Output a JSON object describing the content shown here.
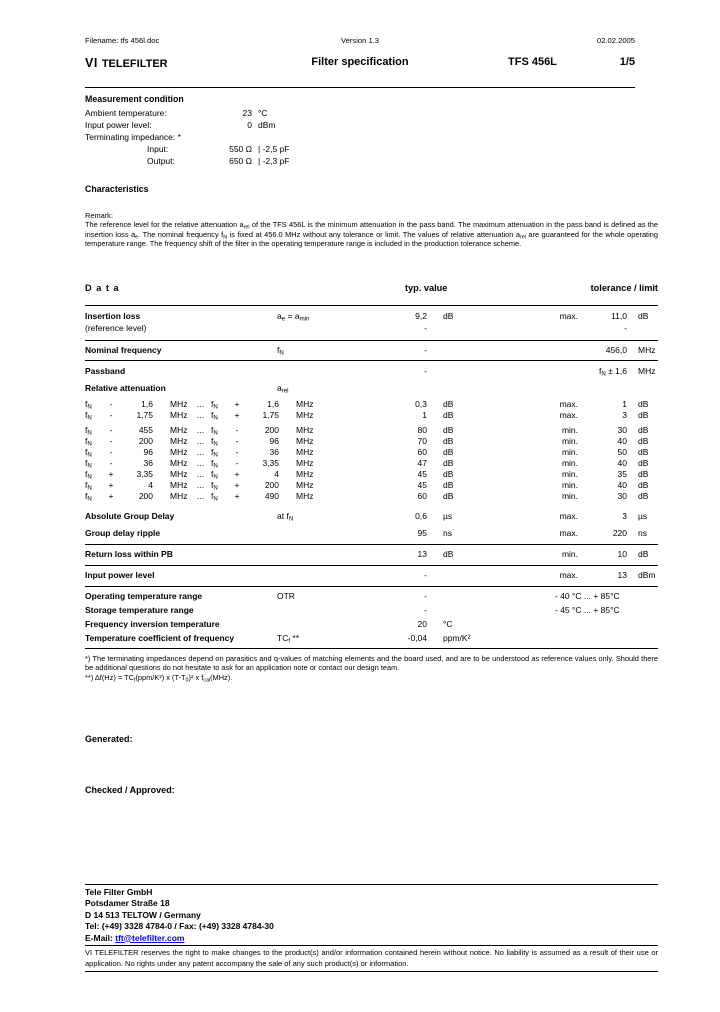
{
  "colors": {
    "text": "#000000",
    "background": "#ffffff",
    "link": "#0000cc"
  },
  "header": {
    "filename": "Filename: tfs 456l.doc",
    "version": "Version 1.3",
    "date": "02.02.2005",
    "logo_vi": "VI",
    "logo_name": "TELEFILTER",
    "doc_title": "Filter specification",
    "part_number": "TFS 456L",
    "page_number": "1/5"
  },
  "measurement": {
    "title": "Measurement condition",
    "rows": [
      {
        "label": "Ambient temperature:",
        "value": "23",
        "unit": "°C"
      },
      {
        "label": "Input power level:",
        "value": "0",
        "unit": "dBm"
      },
      {
        "label": "Terminating impedance: *",
        "value": "",
        "unit": ""
      },
      {
        "label": "Input:",
        "value": "550 Ω",
        "unit": "| -2,5 pF"
      },
      {
        "label": "Output:",
        "value": "650 Ω",
        "unit": "| -2,3 pF"
      }
    ]
  },
  "characteristics": {
    "title": "Characteristics",
    "remark_label": "Remark:",
    "remark_parts": [
      {
        "t": "The reference level for the relative attenuation a"
      },
      {
        "s": "rel"
      },
      {
        "t": " of the TFS 456L is the minimum attenuation in the pass band. The maximum attenuation in the pass band is defined as the insertion loss a"
      },
      {
        "s": "e"
      },
      {
        "t": ". The nominal frequency f"
      },
      {
        "s": "N"
      },
      {
        "t": " is fixed at 456.0 MHz without any tolerance or limit. The values of relative attenuation a"
      },
      {
        "s": "rel"
      },
      {
        "t": " are guaranteed for the whole operating temperature range. The frequency shift of the filter in the operating temperature range is included in the production tolerance scheme."
      }
    ]
  },
  "data_table": {
    "header": {
      "data": "D a t a",
      "typ": "typ. value",
      "tol": "tolerance / limit"
    },
    "insertion": {
      "name": "Insertion loss",
      "name2": "(reference level)",
      "sym_parts": [
        {
          "t": "a"
        },
        {
          "s": "e"
        },
        {
          "t": " = a"
        },
        {
          "s": "min"
        }
      ],
      "typ": "9,2",
      "typ_unit": "dB",
      "typ2": "-",
      "lim": "max.",
      "tol": "11,0",
      "tol_unit": "dB",
      "tol2": "-"
    },
    "nominal": {
      "name": "Nominal frequency",
      "sym_parts": [
        {
          "t": "f"
        },
        {
          "s": "N"
        }
      ],
      "typ": "-",
      "tol": "456,0",
      "tol_unit": "MHz"
    },
    "passband": {
      "name": "Passband",
      "typ": "-",
      "tol_parts": [
        {
          "t": "f"
        },
        {
          "s": "N"
        },
        {
          "t": " ± 1,6"
        }
      ],
      "tol_unit": "MHz"
    },
    "attenuation": {
      "name": "Relative attenuation",
      "sym_parts": [
        {
          "t": "a"
        },
        {
          "s": "rel"
        }
      ],
      "fsym": "f",
      "fsub": "N",
      "mhz": "MHz",
      "dots": "...",
      "unit": "dB",
      "rows": [
        {
          "s1": "-",
          "o1": "1,6",
          "s2": "+",
          "o2": "1,6",
          "typ": "0,3",
          "lim": "max.",
          "tol": "1"
        },
        {
          "s1": "-",
          "o1": "1,75",
          "s2": "+",
          "o2": "1,75",
          "typ": "1",
          "lim": "max.",
          "tol": "3"
        },
        {
          "s1": "-",
          "o1": "455",
          "s2": "-",
          "o2": "200",
          "typ": "80",
          "lim": "min.",
          "tol": "30",
          "gap": true
        },
        {
          "s1": "-",
          "o1": "200",
          "s2": "-",
          "o2": "96",
          "typ": "70",
          "lim": "min.",
          "tol": "40"
        },
        {
          "s1": "-",
          "o1": "96",
          "s2": "-",
          "o2": "36",
          "typ": "60",
          "lim": "min.",
          "tol": "50"
        },
        {
          "s1": "-",
          "o1": "36",
          "s2": "-",
          "o2": "3,35",
          "typ": "47",
          "lim": "min.",
          "tol": "40"
        },
        {
          "s1": "+",
          "o1": "3,35",
          "s2": "+",
          "o2": "4",
          "typ": "45",
          "lim": "min.",
          "tol": "35"
        },
        {
          "s1": "+",
          "o1": "4",
          "s2": "+",
          "o2": "200",
          "typ": "45",
          "lim": "min.",
          "tol": "40"
        },
        {
          "s1": "+",
          "o1": "200",
          "s2": "+",
          "o2": "490",
          "typ": "60",
          "lim": "min.",
          "tol": "30"
        }
      ]
    },
    "group_delay": {
      "name": "Absolute Group Delay",
      "sym_parts": [
        {
          "t": "at f"
        },
        {
          "s": "N"
        }
      ],
      "typ": "0,6",
      "typ_unit": "µs",
      "lim": "max.",
      "tol": "3",
      "tol_unit": "µs"
    },
    "ripple": {
      "name": "Group delay ripple",
      "typ": "95",
      "typ_unit": "ns",
      "lim": "max.",
      "tol": "220",
      "tol_unit": "ns"
    },
    "return_loss": {
      "name": "Return loss within PB",
      "typ": "13",
      "typ_unit": "dB",
      "lim": "min.",
      "tol": "10",
      "tol_unit": "dB"
    },
    "input_power": {
      "name": "Input power level",
      "typ": "-",
      "lim": "max.",
      "tol": "13",
      "tol_unit": "dBm"
    },
    "otr": {
      "name": "Operating temperature range",
      "sym": "OTR",
      "typ": "-",
      "range": "- 40 °C ... + 85°C"
    },
    "storage": {
      "name": "Storage temperature range",
      "typ": "-",
      "range": "- 45 °C ... + 85°C"
    },
    "inversion": {
      "name": "Frequency inversion temperature",
      "typ": "20",
      "typ_unit": "°C"
    },
    "tc": {
      "name": "Temperature coefficient of frequency",
      "sym_parts": [
        {
          "t": "TC"
        },
        {
          "s": "f"
        },
        {
          "t": " **"
        }
      ],
      "typ": "-0,04",
      "typ_unit": "ppm/K²"
    }
  },
  "footnotes": {
    "note1": "*) The terminating impedances depend on parasitics and q-values of matching elements and the board used, and are to be understood as  reference values only. Should there be additional questions do not hesitate to ask for an application note or contact our design team.",
    "formula_parts": [
      {
        "t": "**)  Δf(Hz) = TC"
      },
      {
        "s": "f"
      },
      {
        "t": "(ppm/K²) x (T-T"
      },
      {
        "s": "0"
      },
      {
        "t": ")² x f"
      },
      {
        "s": "cal"
      },
      {
        "t": "(MHz)."
      }
    ]
  },
  "sections": {
    "generated_label": "Generated:",
    "checked_label": "Checked / Approved:"
  },
  "footer": {
    "address": [
      "Tele Filter GmbH",
      "Potsdamer Straße 18",
      "D 14 513 TELTOW / Germany",
      "Tel: (+49) 3328 4784-0 / Fax: (+49) 3328 4784-30"
    ],
    "email_label": "E-Mail: ",
    "email": "tft@telefilter.com",
    "disclaimer": "VI TELEFILTER reserves the right to make changes to the product(s) and/or information contained herein without notice.  No liability is assumed as a result of their use or application.  No rights under any patent accompany the sale of any such product(s) or information."
  }
}
